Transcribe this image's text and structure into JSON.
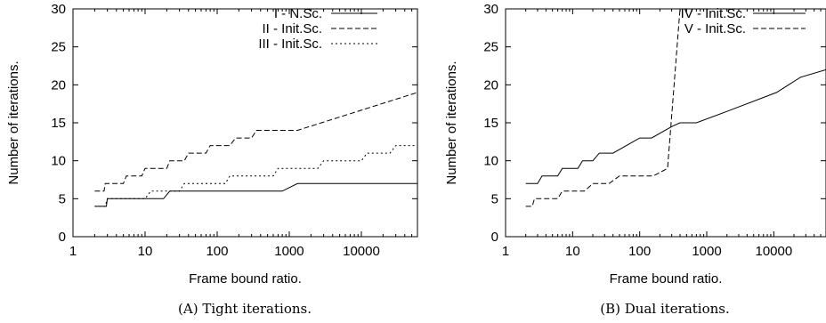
{
  "chart_data": [
    {
      "type": "line",
      "caption": "(A) Tight iterations.",
      "xlabel": "Frame bound ratio.",
      "ylabel": "Number of iterations.",
      "xscale": "log",
      "xlim": [
        1,
        60000
      ],
      "ylim": [
        0,
        30
      ],
      "xticks": [
        1,
        10,
        100,
        1000,
        10000
      ],
      "xtick_labels": [
        "1",
        "10",
        "100",
        "1000",
        "10000"
      ],
      "yticks": [
        0,
        5,
        10,
        15,
        20,
        25,
        30
      ],
      "ytick_labels": [
        "0",
        "5",
        "10",
        "15",
        "20",
        "25",
        "30"
      ],
      "legend_position": "top-right",
      "series": [
        {
          "name": "I - N.Sc.",
          "dash": "solid",
          "points": [
            [
              2,
              4
            ],
            [
              2.9,
              4
            ],
            [
              3,
              5
            ],
            [
              18,
              5
            ],
            [
              22,
              6
            ],
            [
              800,
              6
            ],
            [
              1300,
              7
            ],
            [
              60000,
              7
            ]
          ]
        },
        {
          "name": "II - Init.Sc.",
          "dash": "dashed",
          "points": [
            [
              2,
              6
            ],
            [
              2.7,
              6
            ],
            [
              2.8,
              7
            ],
            [
              5,
              7
            ],
            [
              5.5,
              8
            ],
            [
              9,
              8
            ],
            [
              10,
              9
            ],
            [
              20,
              9
            ],
            [
              22,
              10
            ],
            [
              35,
              10
            ],
            [
              40,
              11
            ],
            [
              70,
              11
            ],
            [
              80,
              12
            ],
            [
              150,
              12
            ],
            [
              180,
              13
            ],
            [
              300,
              13
            ],
            [
              350,
              14
            ],
            [
              1300,
              14
            ],
            [
              60000,
              19
            ]
          ]
        },
        {
          "name": "III - Init.Sc.",
          "dash": "dotted",
          "points": [
            [
              2,
              4
            ],
            [
              2.8,
              4
            ],
            [
              3,
              5
            ],
            [
              10,
              5
            ],
            [
              12,
              6
            ],
            [
              30,
              6
            ],
            [
              35,
              7
            ],
            [
              130,
              7
            ],
            [
              150,
              8
            ],
            [
              600,
              8
            ],
            [
              700,
              9
            ],
            [
              2500,
              9
            ],
            [
              3000,
              10
            ],
            [
              10000,
              10
            ],
            [
              12000,
              11
            ],
            [
              25000,
              11
            ],
            [
              30000,
              12
            ],
            [
              60000,
              12
            ]
          ]
        }
      ]
    },
    {
      "type": "line",
      "caption": "(B) Dual iterations.",
      "xlabel": "Frame bound ratio.",
      "ylabel": "Number of iterations.",
      "xscale": "log",
      "xlim": [
        1,
        60000
      ],
      "ylim": [
        0,
        30
      ],
      "xticks": [
        1,
        10,
        100,
        1000,
        10000
      ],
      "xtick_labels": [
        "1",
        "10",
        "100",
        "1000",
        "10000"
      ],
      "yticks": [
        0,
        5,
        10,
        15,
        20,
        25,
        30
      ],
      "ytick_labels": [
        "0",
        "5",
        "10",
        "15",
        "20",
        "25",
        "30"
      ],
      "legend_position": "top-right",
      "series": [
        {
          "name": "IV - Init.Sc.",
          "dash": "solid",
          "points": [
            [
              2,
              7
            ],
            [
              3,
              7
            ],
            [
              3.5,
              8
            ],
            [
              6,
              8
            ],
            [
              7,
              9
            ],
            [
              12,
              9
            ],
            [
              14,
              10
            ],
            [
              20,
              10
            ],
            [
              25,
              11
            ],
            [
              40,
              11
            ],
            [
              100,
              13
            ],
            [
              150,
              13
            ],
            [
              300,
              14.5
            ],
            [
              400,
              15
            ],
            [
              700,
              15
            ],
            [
              2000,
              16.5
            ],
            [
              11000,
              19
            ],
            [
              25000,
              21
            ],
            [
              60000,
              22
            ]
          ]
        },
        {
          "name": "V - Init.Sc.",
          "dash": "dashed",
          "points": [
            [
              2,
              4
            ],
            [
              2.5,
              4
            ],
            [
              2.7,
              5
            ],
            [
              6,
              5
            ],
            [
              7,
              6
            ],
            [
              15,
              6
            ],
            [
              20,
              7
            ],
            [
              35,
              7
            ],
            [
              50,
              8
            ],
            [
              160,
              8
            ],
            [
              260,
              9
            ],
            [
              400,
              30
            ]
          ]
        }
      ]
    }
  ]
}
